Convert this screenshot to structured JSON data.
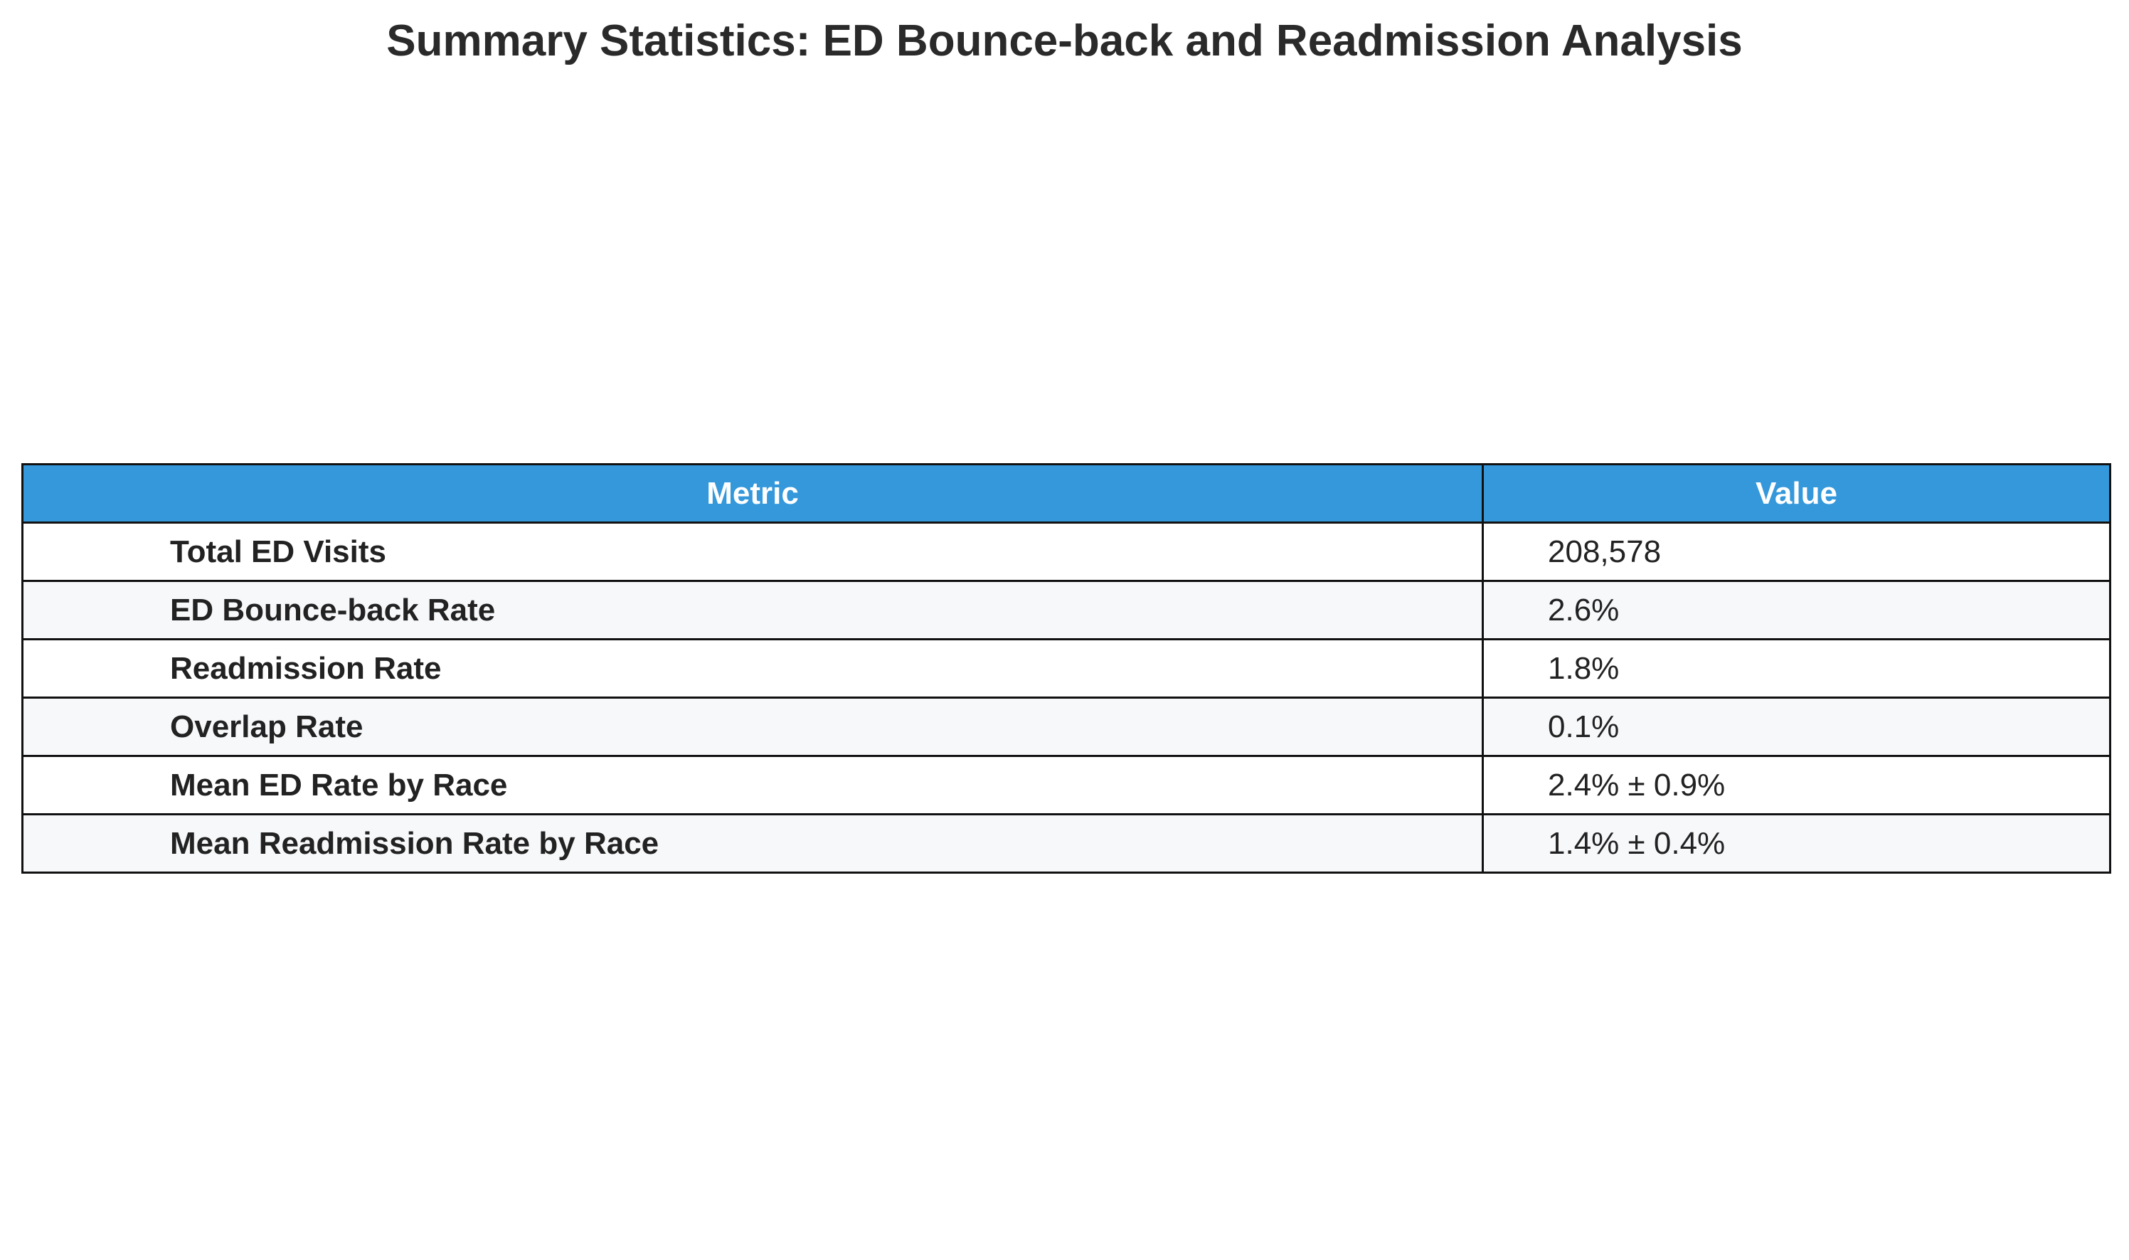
{
  "chart_data": {
    "type": "table",
    "title": "Summary Statistics: ED Bounce-back and Readmission Analysis",
    "columns": [
      "Metric",
      "Value"
    ],
    "rows": [
      {
        "metric": "Total ED Visits",
        "value": "208,578"
      },
      {
        "metric": "ED Bounce-back Rate",
        "value": "2.6%"
      },
      {
        "metric": "Readmission Rate",
        "value": "1.8%"
      },
      {
        "metric": "Overlap Rate",
        "value": "0.1%"
      },
      {
        "metric": "Mean ED Rate by Race",
        "value": "2.4% ± 0.9%"
      },
      {
        "metric": "Mean Readmission Rate by Race",
        "value": "1.4% ± 0.4%"
      }
    ],
    "header_color": "#3498db",
    "header_text_color": "#ffffff",
    "row_colors": [
      "#ffffff",
      "#f7f8fa"
    ],
    "border_color": "#111111"
  }
}
